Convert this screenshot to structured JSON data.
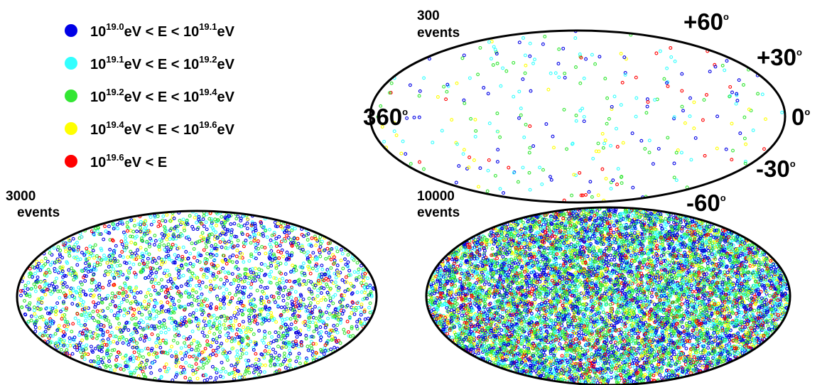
{
  "legend": {
    "items": [
      {
        "color": "#0000e6",
        "prefix": "10",
        "exp_a": "19.0",
        "mid": "eV < E < 10",
        "exp_b": "19.1",
        "suffix": "eV"
      },
      {
        "color": "#33ffff",
        "prefix": "10",
        "exp_a": "19.1",
        "mid": "eV < E < 10",
        "exp_b": "19.2",
        "suffix": "eV"
      },
      {
        "color": "#33e633",
        "prefix": "10",
        "exp_a": "19.2",
        "mid": "eV < E < 10",
        "exp_b": "19.4",
        "suffix": "eV"
      },
      {
        "color": "#ffff00",
        "prefix": "10",
        "exp_a": "19.4",
        "mid": "eV < E < 10",
        "exp_b": "19.6",
        "suffix": "eV"
      },
      {
        "color": "#ff0000",
        "prefix": "10",
        "exp_a": "19.6",
        "mid": "eV < E",
        "exp_b": "",
        "suffix": ""
      }
    ]
  },
  "chart_data": [
    {
      "type": "scatter",
      "projection": "Hammer-Aitoff sky map",
      "label": {
        "count": "300",
        "unit": "events"
      },
      "n_events": 300,
      "marker": "open circle",
      "series_colors": [
        "#0000e6",
        "#33ffff",
        "#33e633",
        "#ffff00",
        "#ff0000"
      ],
      "series_fractions": [
        0.3,
        0.22,
        0.26,
        0.12,
        0.1
      ],
      "axis_labels": {
        "lon_left": {
          "value": "360",
          "deg": "o"
        },
        "lon_right": {
          "value": "0",
          "deg": "o"
        },
        "lat": [
          {
            "value": "+60",
            "deg": "o"
          },
          {
            "value": "+30",
            "deg": "o"
          },
          {
            "value": "-30",
            "deg": "o"
          },
          {
            "value": "-60",
            "deg": "o"
          }
        ]
      }
    },
    {
      "type": "scatter",
      "projection": "Hammer-Aitoff sky map",
      "label": {
        "count": "3000",
        "unit": "events"
      },
      "n_events": 3000,
      "marker": "open circle",
      "series_colors": [
        "#0000e6",
        "#33ffff",
        "#33e633",
        "#ffff00",
        "#ff0000"
      ],
      "series_fractions": [
        0.32,
        0.24,
        0.26,
        0.1,
        0.08
      ]
    },
    {
      "type": "scatter",
      "projection": "Hammer-Aitoff sky map",
      "label": {
        "count": "10000",
        "unit": "events"
      },
      "n_events": 10000,
      "marker": "open circle",
      "series_colors": [
        "#0000e6",
        "#33ffff",
        "#33e633",
        "#ffff00",
        "#ff0000"
      ],
      "series_fractions": [
        0.3,
        0.22,
        0.28,
        0.1,
        0.1
      ]
    }
  ]
}
